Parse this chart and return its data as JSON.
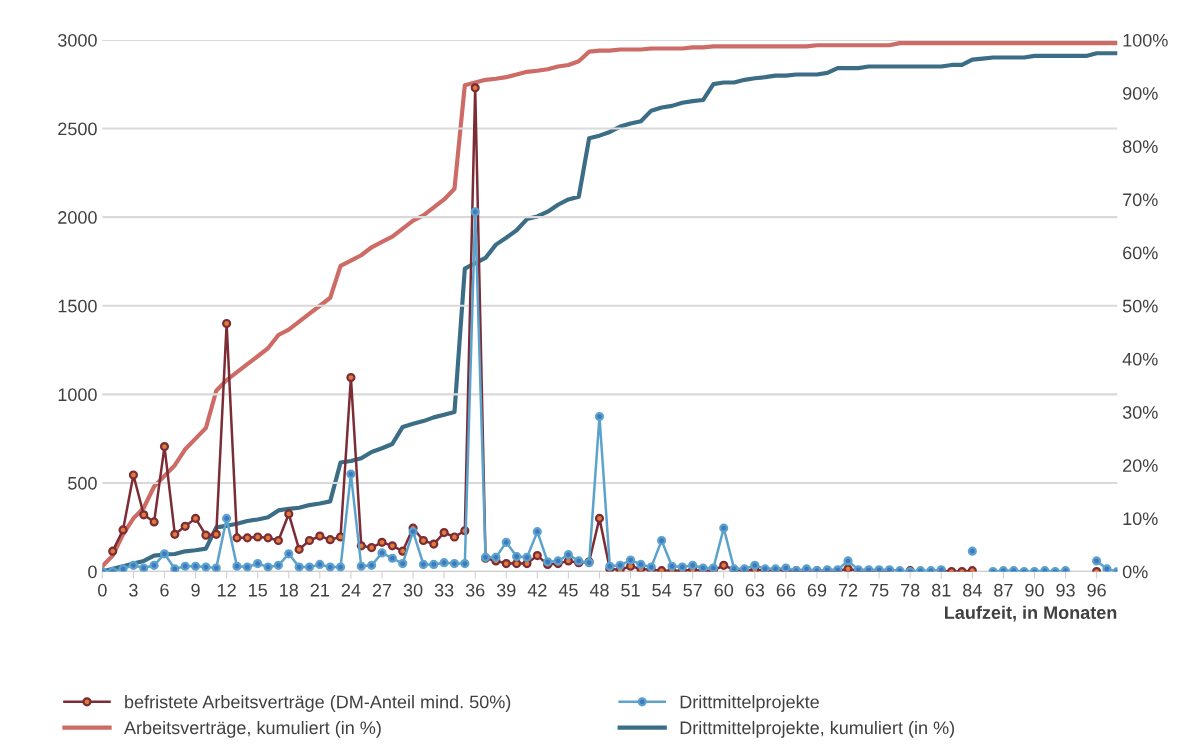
{
  "chart_data": {
    "type": "line",
    "xlabel": "Laufzeit, in Monaten",
    "categories": [
      "0",
      null,
      null,
      "3",
      null,
      null,
      "6",
      null,
      null,
      "9",
      null,
      null,
      "12",
      null,
      null,
      "15",
      null,
      null,
      "18",
      null,
      null,
      "21",
      null,
      null,
      "24",
      null,
      null,
      "27",
      null,
      null,
      "30",
      null,
      null,
      "33",
      null,
      null,
      "36",
      null,
      null,
      "39",
      null,
      null,
      "42",
      null,
      null,
      "45",
      null,
      null,
      "48",
      null,
      null,
      "51",
      null,
      null,
      "54",
      null,
      null,
      "57",
      null,
      null,
      "60",
      null,
      null,
      "63",
      null,
      null,
      "66",
      null,
      null,
      "69",
      null,
      null,
      "72",
      null,
      null,
      "75",
      null,
      null,
      "78",
      null,
      null,
      "81",
      null,
      null,
      "84",
      null,
      null,
      "87",
      null,
      null,
      "90",
      null,
      null,
      "93",
      null,
      null,
      "96",
      null,
      null
    ],
    "ylim": [
      0,
      3000
    ],
    "yticks": [
      0,
      500,
      1000,
      1500,
      2000,
      2500,
      3000
    ],
    "y2lim": [
      0,
      100
    ],
    "y2ticks": [
      {
        "value": 0,
        "label": "0%"
      },
      {
        "value": 10,
        "label": "10%"
      },
      {
        "value": 20,
        "label": "20%"
      },
      {
        "value": 30,
        "label": "30%"
      },
      {
        "value": 40,
        "label": "40%"
      },
      {
        "value": 50,
        "label": "50%"
      },
      {
        "value": 60,
        "label": "60%"
      },
      {
        "value": 70,
        "label": "70%"
      },
      {
        "value": 80,
        "label": "80%"
      },
      {
        "value": 90,
        "label": "90%"
      },
      {
        "value": 100,
        "label": "100%"
      }
    ],
    "grid": "y",
    "legend": "bottom",
    "series": [
      {
        "name": "befristete Arbeitsverträge (DM-Anteil mind. 50%)",
        "color": "#7b2c35",
        "marker": "circle",
        "values": [
          null,
          115,
          235,
          545,
          320,
          280,
          705,
          210,
          255,
          300,
          205,
          210,
          1400,
          190,
          190,
          195,
          190,
          175,
          325,
          125,
          175,
          200,
          180,
          195,
          1095,
          145,
          135,
          165,
          145,
          115,
          245,
          175,
          155,
          220,
          195,
          230,
          2730,
          75,
          60,
          45,
          45,
          45,
          90,
          40,
          45,
          60,
          50,
          55,
          300,
          15,
          10,
          30,
          15,
          10,
          5,
          5,
          5,
          10,
          5,
          5,
          35,
          10,
          5,
          10,
          5,
          10,
          5,
          5,
          5,
          5,
          5,
          5,
          15,
          5,
          5,
          5,
          5,
          null,
          5,
          null,
          null,
          5,
          0,
          0,
          5,
          null,
          null,
          null,
          null,
          null,
          null,
          null,
          null,
          null,
          null,
          null,
          0,
          null,
          null
        ]
      },
      {
        "name": "Drittmittelprojekte",
        "color": "#5ba3cc",
        "marker": "circle",
        "values": [
          0,
          0,
          15,
          35,
          20,
          35,
          100,
          15,
          30,
          30,
          25,
          20,
          300,
          30,
          25,
          45,
          25,
          35,
          100,
          25,
          25,
          40,
          25,
          25,
          550,
          30,
          35,
          105,
          75,
          45,
          225,
          40,
          40,
          50,
          45,
          45,
          2030,
          80,
          80,
          165,
          85,
          80,
          225,
          55,
          60,
          95,
          60,
          50,
          875,
          30,
          35,
          65,
          40,
          25,
          175,
          30,
          25,
          35,
          20,
          20,
          245,
          15,
          15,
          35,
          15,
          15,
          20,
          5,
          15,
          5,
          10,
          10,
          60,
          10,
          10,
          10,
          10,
          5,
          0,
          5,
          5,
          10,
          null,
          null,
          115,
          null,
          0,
          5,
          5,
          0,
          0,
          5,
          0,
          5,
          null,
          null,
          60,
          15,
          0
        ]
      },
      {
        "name": "Arbeitsverträge, kumuliert (in %)",
        "color": "#cd6b66",
        "axis": "y2",
        "marker": "none",
        "values": [
          1,
          3,
          7,
          10,
          12,
          16,
          18,
          20,
          23,
          25,
          27,
          34,
          36,
          37.5,
          39,
          40.5,
          42,
          44.5,
          45.5,
          47,
          48.5,
          50,
          51.5,
          57.5,
          58.5,
          59.5,
          61,
          62,
          63,
          64.5,
          66,
          67,
          68.5,
          70,
          72,
          91.5,
          92,
          92.5,
          92.7,
          93,
          93.5,
          94,
          94.2,
          94.5,
          95,
          95.3,
          96,
          97.8,
          98,
          98,
          98.2,
          98.2,
          98.2,
          98.4,
          98.4,
          98.4,
          98.4,
          98.6,
          98.6,
          98.8,
          98.8,
          98.8,
          98.8,
          98.8,
          98.8,
          98.8,
          98.8,
          98.8,
          98.8,
          99,
          99,
          99,
          99,
          99,
          99,
          99,
          99,
          99.4,
          99.4,
          99.4,
          99.4,
          99.4,
          99.4,
          99.4,
          99.4,
          99.4,
          99.4,
          99.4,
          99.4,
          99.4,
          99.4,
          99.4,
          99.4,
          99.4,
          99.4,
          99.4,
          99.4,
          99.4,
          99.4
        ]
      },
      {
        "name": "Drittmittelprojekte, kumuliert (in %)",
        "color": "#3b6e86",
        "axis": "y2",
        "marker": "none",
        "values": [
          0,
          0.5,
          1,
          1.5,
          2,
          3,
          3.2,
          3.3,
          3.8,
          4,
          4.3,
          8.3,
          8.6,
          9,
          9.5,
          9.8,
          10.2,
          11.5,
          11.8,
          12,
          12.5,
          12.8,
          13.2,
          20.5,
          20.8,
          21.3,
          22.5,
          23.2,
          24,
          27.2,
          27.8,
          28.3,
          29,
          29.5,
          30,
          57,
          58,
          59,
          61.5,
          62.8,
          64.2,
          66.3,
          66.8,
          67.7,
          69,
          70,
          70.5,
          81.5,
          82,
          82.7,
          83.7,
          84.3,
          84.7,
          86.7,
          87.3,
          87.6,
          88.2,
          88.5,
          88.7,
          91.7,
          92,
          92,
          92.5,
          92.8,
          93,
          93.3,
          93.3,
          93.5,
          93.5,
          93.5,
          93.8,
          94.7,
          94.7,
          94.7,
          95,
          95,
          95,
          95,
          95,
          95,
          95,
          95,
          95.3,
          95.3,
          96.3,
          96.5,
          96.7,
          96.7,
          96.7,
          96.7,
          97,
          97,
          97,
          97,
          97,
          97,
          97.5,
          97.5,
          97.5
        ]
      }
    ]
  }
}
